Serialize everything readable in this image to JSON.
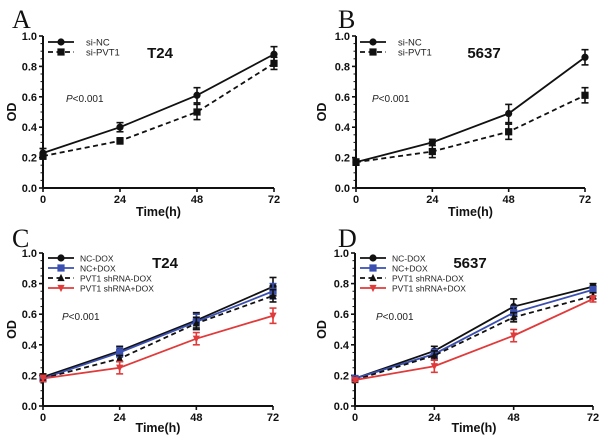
{
  "chart_data": [
    {
      "panel": "A",
      "type": "line",
      "title": "T24",
      "xlabel": "Time(h)",
      "ylabel": "OD",
      "x": [
        0,
        24,
        48,
        72
      ],
      "xticks": [
        "0",
        "24",
        "48",
        "72"
      ],
      "yticks": [
        "0.0",
        "0.2",
        "0.4",
        "0.6",
        "0.8",
        "1.0"
      ],
      "xlim": [
        0,
        72
      ],
      "ylim": [
        0,
        1.0
      ],
      "grid": false,
      "legend_position": "top-left",
      "annotation": "<0.001",
      "annotation_italic": "P",
      "series": [
        {
          "name": "si-NC",
          "color": "#111111",
          "dash": "solid",
          "marker": "circle",
          "values": [
            0.23,
            0.4,
            0.61,
            0.88
          ],
          "errors": [
            0.03,
            0.03,
            0.05,
            0.05
          ]
        },
        {
          "name": "si-PVT1",
          "color": "#111111",
          "dash": "dashed",
          "marker": "square",
          "values": [
            0.21,
            0.31,
            0.5,
            0.82
          ],
          "errors": [
            0.02,
            0.02,
            0.05,
            0.04
          ]
        }
      ]
    },
    {
      "panel": "B",
      "type": "line",
      "title": "5637",
      "xlabel": "Time(h)",
      "ylabel": "OD",
      "x": [
        0,
        24,
        48,
        72
      ],
      "xticks": [
        "0",
        "24",
        "48",
        "72"
      ],
      "yticks": [
        "0.0",
        "0.2",
        "0.4",
        "0.6",
        "0.8",
        "1.0"
      ],
      "xlim": [
        0,
        72
      ],
      "ylim": [
        0,
        1.0
      ],
      "grid": false,
      "legend_position": "top-left",
      "annotation": "<0.001",
      "annotation_italic": "P",
      "series": [
        {
          "name": "si-NC",
          "color": "#111111",
          "dash": "solid",
          "marker": "circle",
          "values": [
            0.17,
            0.3,
            0.49,
            0.86
          ],
          "errors": [
            0.02,
            0.02,
            0.06,
            0.05
          ]
        },
        {
          "name": "si-PVT1",
          "color": "#111111",
          "dash": "dashed",
          "marker": "square",
          "values": [
            0.17,
            0.24,
            0.37,
            0.61
          ],
          "errors": [
            0.02,
            0.04,
            0.05,
            0.05
          ]
        }
      ]
    },
    {
      "panel": "C",
      "type": "line",
      "title": "T24",
      "xlabel": "Time(h)",
      "ylabel": "OD",
      "x": [
        0,
        24,
        48,
        72
      ],
      "xticks": [
        "0",
        "24",
        "48",
        "72"
      ],
      "yticks": [
        "0.0",
        "0.2",
        "0.4",
        "0.6",
        "0.8",
        "1.0"
      ],
      "xlim": [
        0,
        72
      ],
      "ylim": [
        0,
        1.0
      ],
      "grid": false,
      "legend_position": "top-left",
      "annotation": "<0.001",
      "annotation_italic": "P",
      "series": [
        {
          "name": "NC-DOX",
          "color": "#111111",
          "dash": "solid",
          "marker": "circle",
          "values": [
            0.19,
            0.36,
            0.56,
            0.78
          ],
          "errors": [
            0.02,
            0.03,
            0.05,
            0.06
          ]
        },
        {
          "name": "NC+DOX",
          "color": "#3a4fb0",
          "dash": "solid",
          "marker": "square",
          "values": [
            0.18,
            0.35,
            0.55,
            0.75
          ],
          "errors": [
            0.02,
            0.03,
            0.05,
            0.05
          ]
        },
        {
          "name": "PVT1 shRNA-DOX",
          "color": "#111111",
          "dash": "dashed",
          "marker": "triangle-up",
          "values": [
            0.18,
            0.31,
            0.54,
            0.72
          ],
          "errors": [
            0.02,
            0.02,
            0.04,
            0.04
          ]
        },
        {
          "name": "PVT1 shRNA+DOX",
          "color": "#e03a3a",
          "dash": "solid",
          "marker": "triangle-down",
          "values": [
            0.18,
            0.25,
            0.44,
            0.59
          ],
          "errors": [
            0.02,
            0.04,
            0.04,
            0.05
          ]
        }
      ]
    },
    {
      "panel": "D",
      "type": "line",
      "title": "5637",
      "xlabel": "Time(h)",
      "ylabel": "OD",
      "x": [
        0,
        24,
        48,
        72
      ],
      "xticks": [
        "0",
        "24",
        "48",
        "72"
      ],
      "yticks": [
        "0.0",
        "0.2",
        "0.4",
        "0.6",
        "0.8",
        "1.0"
      ],
      "xlim": [
        0,
        72
      ],
      "ylim": [
        0,
        1.0
      ],
      "grid": false,
      "legend_position": "top-left",
      "annotation": "<0.001",
      "annotation_italic": "P",
      "series": [
        {
          "name": "NC-DOX",
          "color": "#111111",
          "dash": "solid",
          "marker": "circle",
          "values": [
            0.18,
            0.36,
            0.65,
            0.78
          ],
          "errors": [
            0.01,
            0.03,
            0.05,
            0.02
          ]
        },
        {
          "name": "NC+DOX",
          "color": "#3a4fb0",
          "dash": "solid",
          "marker": "square",
          "values": [
            0.18,
            0.34,
            0.61,
            0.76
          ],
          "errors": [
            0.01,
            0.03,
            0.04,
            0.02
          ]
        },
        {
          "name": "PVT1 shRNA-DOX",
          "color": "#111111",
          "dash": "dashed",
          "marker": "triangle-up",
          "values": [
            0.17,
            0.33,
            0.58,
            0.72
          ],
          "errors": [
            0.01,
            0.03,
            0.03,
            0.02
          ]
        },
        {
          "name": "PVT1 shRNA+DOX",
          "color": "#e03a3a",
          "dash": "solid",
          "marker": "triangle-down",
          "values": [
            0.17,
            0.26,
            0.46,
            0.7
          ],
          "errors": [
            0.01,
            0.04,
            0.04,
            0.02
          ]
        }
      ]
    }
  ]
}
